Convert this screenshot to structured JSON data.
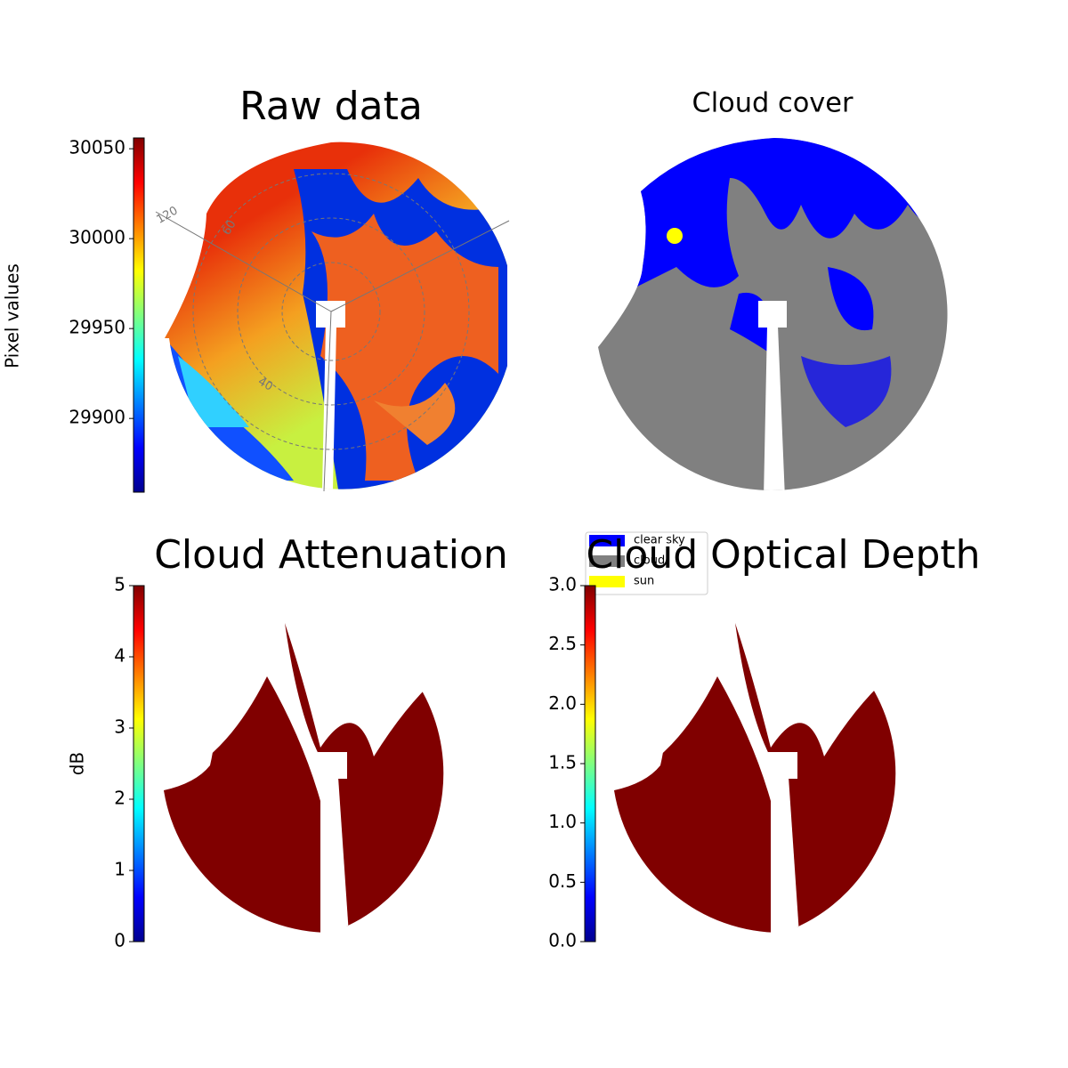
{
  "chart_data": [
    {
      "type": "image",
      "title": "Raw data",
      "polar_labels": [
        "120",
        "60",
        "40"
      ],
      "colorbar": {
        "label": "Pixel values",
        "colormap": "jet",
        "lim": [
          29859,
          30056
        ],
        "ticks": [
          29900,
          29950,
          30000,
          30050
        ]
      }
    },
    {
      "type": "image",
      "title": "Cloud cover",
      "series": [
        {
          "name": "clear sky",
          "color": "#0000ff"
        },
        {
          "name": "cloud",
          "color": "#808080"
        },
        {
          "name": "sun",
          "color": "#ffff00"
        }
      ]
    },
    {
      "type": "image",
      "title": "Cloud Attenuation",
      "colorbar": {
        "label": "dB",
        "colormap": "jet",
        "lim": [
          0,
          5
        ],
        "ticks": [
          0,
          1,
          2,
          3,
          4,
          5
        ]
      }
    },
    {
      "type": "image",
      "title": "Cloud Optical Depth",
      "colorbar": {
        "colormap": "jet",
        "lim": [
          0,
          3
        ],
        "ticks": [
          {
            "value": 0,
            "label": "0.0"
          },
          0.5,
          {
            "value": 1,
            "label": "1.0"
          },
          1.5,
          {
            "value": 2,
            "label": "2.0"
          },
          2.5,
          {
            "value": 3,
            "label": "3.0"
          }
        ]
      }
    }
  ]
}
